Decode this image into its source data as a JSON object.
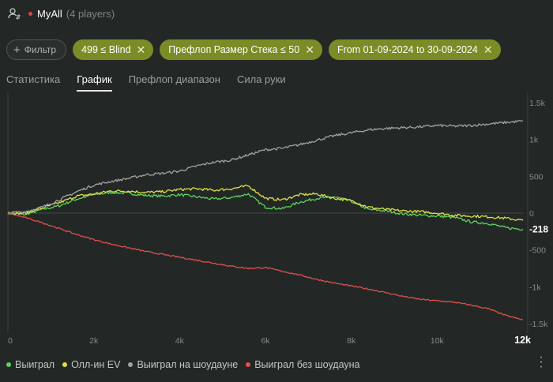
{
  "header": {
    "user": "MyAll",
    "players": "(4 players)"
  },
  "filters": {
    "add_label": "Фильтр",
    "chips": [
      "499 ≤ Blind",
      "Префлоп Размер Стека ≤ 50",
      "From 01-09-2024 to 30-09-2024"
    ]
  },
  "tabs": [
    {
      "label": "Статистика",
      "active": false
    },
    {
      "label": "График",
      "active": true
    },
    {
      "label": "Префлоп диапазон",
      "active": false
    },
    {
      "label": "Сила руки",
      "active": false
    }
  ],
  "chart_data": {
    "type": "line",
    "xlim": [
      0,
      12000
    ],
    "ylim": [
      -1500,
      1500
    ],
    "x_ticks": [
      {
        "value": 0,
        "label": "0"
      },
      {
        "value": 2000,
        "label": "2k"
      },
      {
        "value": 4000,
        "label": "4k"
      },
      {
        "value": 6000,
        "label": "6k"
      },
      {
        "value": 8000,
        "label": "8k"
      },
      {
        "value": 10000,
        "label": "10k"
      },
      {
        "value": 12000,
        "label": "12k"
      }
    ],
    "y_ticks": [
      {
        "value": 1500,
        "label": "1.5k"
      },
      {
        "value": 1000,
        "label": "1k"
      },
      {
        "value": 500,
        "label": "500"
      },
      {
        "value": 0,
        "label": "0"
      },
      {
        "value": -500,
        "label": "-500"
      },
      {
        "value": -1000,
        "label": "-1k"
      },
      {
        "value": -1500,
        "label": "-1.5k"
      }
    ],
    "end_label": "-218",
    "x": [
      0,
      400,
      800,
      1200,
      1600,
      2000,
      2400,
      2800,
      3200,
      3600,
      4000,
      4400,
      4800,
      5200,
      5600,
      6000,
      6400,
      6800,
      7200,
      7600,
      8000,
      8400,
      8800,
      9200,
      9600,
      10000,
      10400,
      10800,
      11200,
      11600,
      12000
    ],
    "series": [
      {
        "name": "Выиграл",
        "color": "#5fd35d",
        "values": [
          0,
          -20,
          50,
          100,
          190,
          250,
          280,
          270,
          240,
          230,
          250,
          220,
          190,
          210,
          260,
          80,
          60,
          150,
          200,
          220,
          160,
          50,
          30,
          -10,
          -30,
          -40,
          -60,
          -120,
          -140,
          -200,
          -218
        ]
      },
      {
        "name": "Олл-ин EV",
        "color": "#dfe04a",
        "values": [
          0,
          -5,
          70,
          140,
          230,
          260,
          300,
          300,
          280,
          290,
          320,
          330,
          310,
          330,
          370,
          200,
          180,
          250,
          260,
          200,
          170,
          80,
          50,
          30,
          20,
          0,
          -30,
          -40,
          -50,
          -70,
          -100
        ]
      },
      {
        "name": "Выиграл на шоудауне",
        "color": "#9fa3a1",
        "values": [
          0,
          20,
          80,
          180,
          290,
          380,
          430,
          470,
          520,
          540,
          570,
          640,
          690,
          720,
          790,
          860,
          880,
          930,
          990,
          1050,
          1090,
          1130,
          1150,
          1160,
          1170,
          1190,
          1180,
          1190,
          1210,
          1230,
          1250
        ]
      },
      {
        "name": "Выиграл без шоудауна",
        "color": "#e0504c",
        "values": [
          0,
          -60,
          -130,
          -210,
          -290,
          -360,
          -420,
          -470,
          -520,
          -560,
          -600,
          -640,
          -680,
          -720,
          -750,
          -740,
          -790,
          -840,
          -900,
          -950,
          -990,
          -1030,
          -1080,
          -1130,
          -1170,
          -1190,
          -1210,
          -1250,
          -1300,
          -1390,
          -1450
        ]
      }
    ]
  },
  "menu_icon": "more-vertical-icon"
}
